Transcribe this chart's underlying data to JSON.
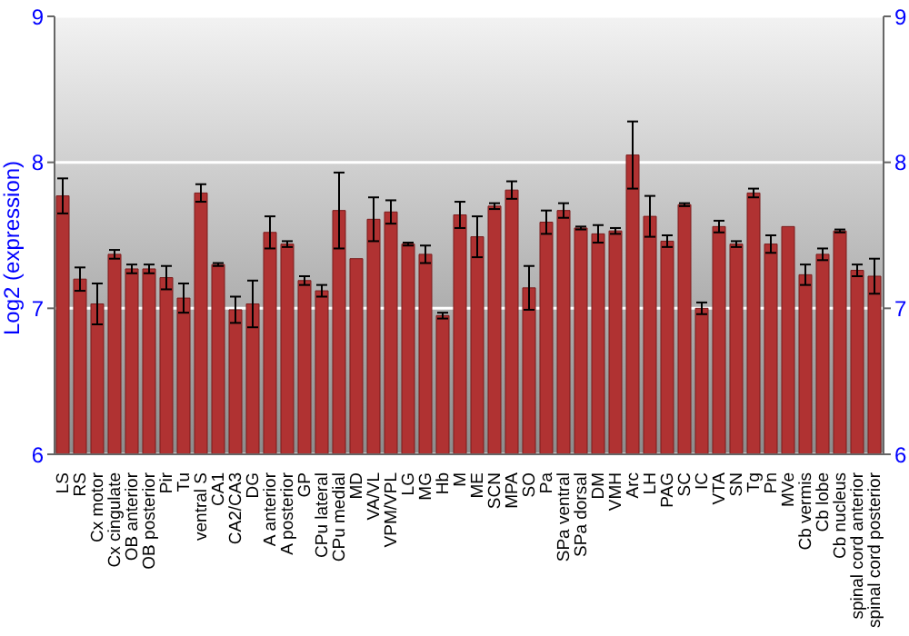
{
  "chart_data": {
    "type": "bar",
    "ylabel": "Log2 (expression)",
    "categories": [
      "LS",
      "RS",
      "Cx motor",
      "Cx cingulate",
      "OB anterior",
      "OB posterior",
      "Pir",
      "Tu",
      "ventral S",
      "CA1",
      "CA2/CA3",
      "DG",
      "A anterior",
      "A posterior",
      "GP",
      "CPu lateral",
      "CPu medial",
      "MD",
      "VA/VL",
      "VPM/VPL",
      "LG",
      "MG",
      "Hb",
      "M",
      "ME",
      "SCN",
      "MPA",
      "SO",
      "Pa",
      "SPa ventral",
      "SPa dorsal",
      "DM",
      "VMH",
      "Arc",
      "LH",
      "PAG",
      "SC",
      "IC",
      "VTA",
      "SN",
      "Tg",
      "Pn",
      "MVe",
      "Cb vermis",
      "Cb lobe",
      "Cb nucleus",
      "spinal cord anterior",
      "spinal cord posterior"
    ],
    "values": [
      7.77,
      7.2,
      7.03,
      7.37,
      7.27,
      7.27,
      7.21,
      7.07,
      7.79,
      7.3,
      6.99,
      7.03,
      7.52,
      7.44,
      7.19,
      7.12,
      7.67,
      7.34,
      7.61,
      7.66,
      7.44,
      7.37,
      6.95,
      7.64,
      7.49,
      7.7,
      7.81,
      7.14,
      7.59,
      7.67,
      7.55,
      7.51,
      7.53,
      8.05,
      7.63,
      7.46,
      7.71,
      7.0,
      7.56,
      7.44,
      7.79,
      7.44,
      7.56,
      7.23,
      7.37,
      7.53,
      7.26,
      7.22
    ],
    "errors": [
      0.12,
      0.08,
      0.14,
      0.03,
      0.03,
      0.03,
      0.08,
      0.1,
      0.06,
      0.01,
      0.09,
      0.16,
      0.11,
      0.02,
      0.03,
      0.04,
      0.26,
      null,
      0.15,
      0.08,
      0.01,
      0.06,
      0.02,
      0.09,
      0.14,
      0.02,
      0.06,
      0.15,
      0.08,
      0.05,
      0.01,
      0.06,
      0.02,
      0.23,
      0.14,
      0.04,
      0.01,
      0.04,
      0.04,
      0.02,
      0.03,
      0.06,
      null,
      0.07,
      0.04,
      0.01,
      0.04,
      0.12
    ],
    "color": "#b03232",
    "ylim": [
      6,
      9
    ],
    "yticks": [
      6,
      7,
      8,
      9
    ],
    "y2lim": [
      6,
      9
    ],
    "y2ticks": [
      6,
      7,
      8,
      9
    ],
    "grid": "y"
  }
}
